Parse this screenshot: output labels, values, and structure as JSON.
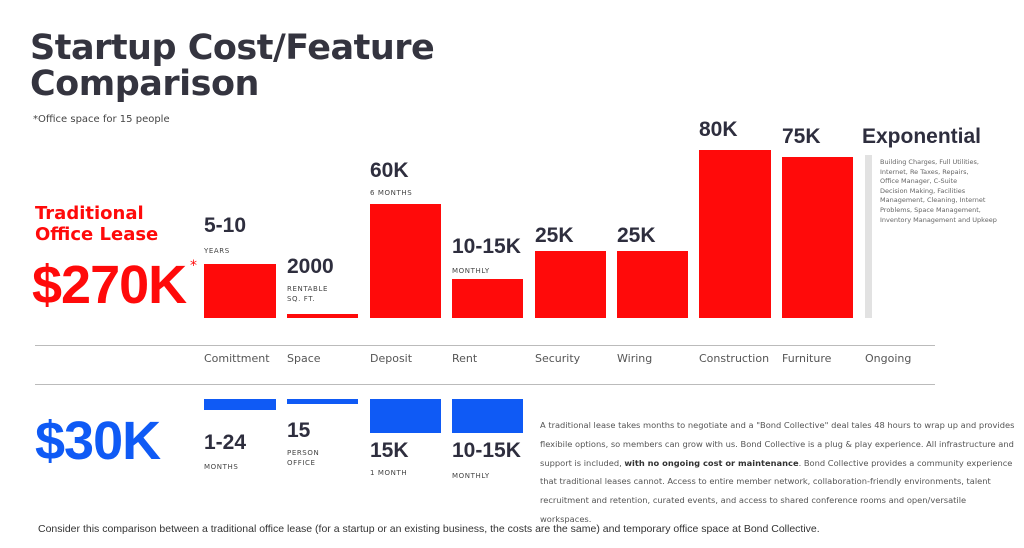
{
  "title": {
    "line1": "Startup Cost/Feature",
    "line2": "Comparison"
  },
  "note": "*Office space for 15 people",
  "traditional": {
    "label_line1": "Traditional",
    "label_line2": "Office Lease",
    "total": "$270K",
    "asterisk": "*",
    "color": "#ff0a0a"
  },
  "bond": {
    "total": "$30K",
    "color": "#0f5af5"
  },
  "categories": [
    "Comittment",
    "Space",
    "Deposit",
    "Rent",
    "Security",
    "Wiring",
    "Construction",
    "Furniture",
    "Ongoing"
  ],
  "traditional_items": [
    {
      "value": "5-10",
      "unit": "YEARS"
    },
    {
      "value": "2000",
      "unit1": "RENTABLE",
      "unit2": "SQ. FT."
    },
    {
      "value": "60K",
      "unit": "6 MONTHS"
    },
    {
      "value": "10-15K",
      "unit": "MONTHLY"
    },
    {
      "value": "25K"
    },
    {
      "value": "25K"
    },
    {
      "value": "80K"
    },
    {
      "value": "75K"
    },
    {
      "value": "Exponential",
      "details": [
        "Building Charges, Full Utilities,",
        "Internet, Re Taxes, Repairs,",
        "Office Manager, C-Suite",
        "Decision Making, Facilities",
        "Management, Cleaning, Internet",
        "Problems, Space Management,",
        "Inventory Management and Upkeep"
      ]
    }
  ],
  "bond_items": [
    {
      "value": "1-24",
      "unit": "MONTHS"
    },
    {
      "value": "15",
      "unit1": "PERSON",
      "unit2": "OFFICE"
    },
    {
      "value": "15K",
      "unit": "1 MONTH"
    },
    {
      "value": "10-15K",
      "unit": "MONTHLY"
    }
  ],
  "paragraph": {
    "part1": "A traditional lease takes months to negotiate and a \"Bond Collective\" deal tales 48 hours to wrap up and provides flexibile options, so members can grow with us. Bond Collective is a plug & play experience. All infrastructure and support is included, ",
    "bold": "with no ongoing cost or maintenance",
    "part2": ". Bond Collective provides a community experience that traditional leases cannot. Access to entire member network, collaboration-friendly environments, talent recruitment and retention, curated events, and access to shared conference rooms and open/versatile workspaces."
  },
  "caption": "Consider this comparison between a traditional office lease (for a startup or an existing business, the costs are the same) and temporary office space at Bond Collective."
}
